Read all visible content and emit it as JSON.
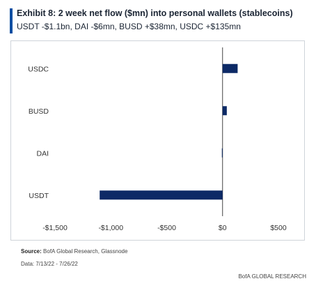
{
  "header": {
    "title": "Exhibit 8: 2 week net flow ($mn) into personal wallets (stablecoins)",
    "subtitle": "USDT -$1.1bn, DAI -$6mn, BUSD +$38mn, USDC +$135mn",
    "accent_color": "#0b4ea2"
  },
  "chart_data": {
    "type": "bar",
    "orientation": "horizontal",
    "categories": [
      "USDC",
      "BUSD",
      "DAI",
      "USDT"
    ],
    "values": [
      135,
      38,
      -6,
      -1100
    ],
    "xlim": [
      -1500,
      500
    ],
    "xticks": [
      -1500,
      -1000,
      -500,
      0,
      500
    ],
    "xtick_labels": [
      "-$1,500",
      "-$1,000",
      "-$500",
      "$0",
      "$500"
    ],
    "bar_color": "#0d2a66",
    "grid": false,
    "title": "",
    "xlabel": "",
    "ylabel": ""
  },
  "footer": {
    "source_label": "Source:",
    "source_text": "BofA Global Research, Glassnode",
    "date_note": "Data: 7/13/22 - 7/26/22",
    "brand": "BofA GLOBAL RESEARCH"
  }
}
